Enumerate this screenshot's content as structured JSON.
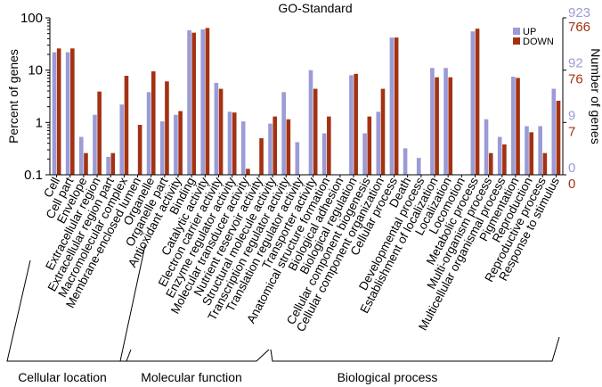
{
  "chart_data": {
    "type": "bar",
    "title": "GO-Standard",
    "ylabel": "Percent of genes",
    "y2label": "Number of genes",
    "yscale": "log",
    "ylim": [
      0.1,
      100
    ],
    "yticks": [
      "0.1",
      "1",
      "10",
      "100"
    ],
    "right_ticks": [
      {
        "up": "923",
        "down": "766"
      },
      {
        "up": "92",
        "down": "76"
      },
      {
        "up": "9",
        "down": "7"
      },
      {
        "up": "0",
        "down": "0"
      }
    ],
    "colors": {
      "UP": "#9b9bd6",
      "DOWN": "#a33212"
    },
    "legend": [
      "UP",
      "DOWN"
    ],
    "categories": [
      "Cell",
      "Cell part",
      "Envelope",
      "Extracellular region",
      "Extracellular region part",
      "Macromolecular complex",
      "Membrane-enclosed lumen",
      "Organelle",
      "Organelle part",
      "Antioxidant activity",
      "Binding",
      "Catalytic activity",
      "Electron carrier activity",
      "Enzyme regulator activity",
      "Molecular transducer activity",
      "Nutrient reservoir activity",
      "Structural molecule activity",
      "Transcription regulator activity",
      "Translation regulator activity",
      "Transporter activity",
      "Anatomical structure formation",
      "Biological adhesion",
      "Biological regulation",
      "Cellular component biogenesis",
      "Cellular component organization",
      "Cellular process",
      "Death",
      "Developmental process",
      "Establishment of localization",
      "Localization",
      "Locomotion",
      "Metabolic process",
      "Multi-organism process",
      "Multicellular organismal process",
      "Pigmentation",
      "Reproduction",
      "Reproductive process",
      "Response to stimulus"
    ],
    "series": [
      {
        "name": "UP",
        "values": [
          22,
          22,
          0.53,
          1.4,
          0.22,
          2.2,
          null,
          3.8,
          1.05,
          1.4,
          58,
          60,
          5.7,
          1.6,
          1.05,
          null,
          0.95,
          3.8,
          0.42,
          10,
          0.62,
          null,
          8,
          0.62,
          1.6,
          42,
          0.32,
          0.21,
          11,
          11,
          null,
          55,
          1.15,
          0.53,
          7.5,
          0.85,
          0.85,
          4.4
        ]
      },
      {
        "name": "DOWN",
        "values": [
          26,
          26,
          0.26,
          3.9,
          0.26,
          7.8,
          0.9,
          9.5,
          6.1,
          1.65,
          52,
          64,
          4.4,
          1.55,
          0.13,
          0.5,
          1.3,
          1.15,
          null,
          4.4,
          1.3,
          null,
          8.5,
          1.3,
          4.4,
          42,
          null,
          null,
          7.3,
          7.3,
          null,
          62,
          0.26,
          0.38,
          7.1,
          0.65,
          0.26,
          2.6
        ]
      }
    ],
    "groups": [
      {
        "label": "Cellular location",
        "from": 0,
        "to": 8
      },
      {
        "label": "Molecular function",
        "from": 9,
        "to": 19
      },
      {
        "label": "Biological process",
        "from": 20,
        "to": 37
      }
    ]
  }
}
